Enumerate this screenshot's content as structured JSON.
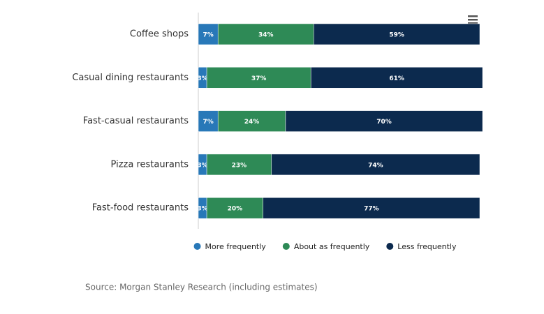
{
  "chart_data": {
    "type": "bar",
    "orientation": "horizontal",
    "stacked": true,
    "categories": [
      "Coffee shops",
      "Casual dining restaurants",
      "Fast-casual restaurants",
      "Pizza restaurants",
      "Fast-food restaurants"
    ],
    "series": [
      {
        "name": "More frequently",
        "color": "#2878b8",
        "values": [
          7,
          3,
          7,
          3,
          3
        ],
        "value_labels": [
          "7%",
          "3%",
          "7%",
          "3%",
          "3%"
        ]
      },
      {
        "name": "About as frequently",
        "color": "#2e8a56",
        "values": [
          34,
          37,
          24,
          23,
          20
        ],
        "value_labels": [
          "34%",
          "37%",
          "24%",
          "23%",
          "20%"
        ]
      },
      {
        "name": "Less frequently",
        "color": "#0c2a4e",
        "values": [
          59,
          61,
          70,
          74,
          77
        ],
        "value_labels": [
          "59%",
          "61%",
          "70%",
          "74%",
          "77%"
        ]
      }
    ],
    "xlim": [
      0,
      100
    ],
    "legend": "bottom",
    "source": "Source: Morgan Stanley Research (including estimates)"
  }
}
